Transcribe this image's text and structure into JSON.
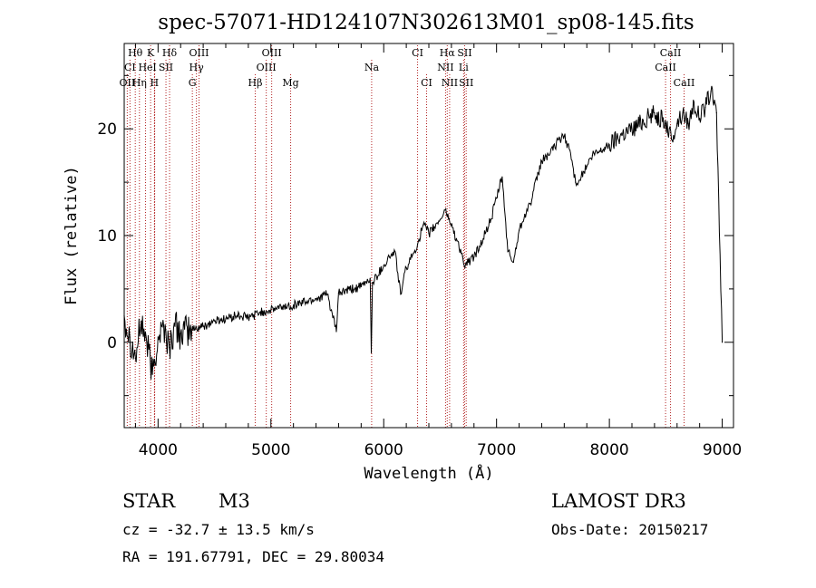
{
  "colors": {
    "background": "#ffffff",
    "ink": "#000000",
    "line_marker": "#b22222"
  },
  "title": "spec-57071-HD124107N302613M01_sp08-145.fits",
  "chart_data": {
    "type": "line",
    "title": "spec-57071-HD124107N302613M01_sp08-145.fits",
    "xlabel": "Wavelength (Å)",
    "ylabel": "Flux (relative)",
    "xlim": [
      3700,
      9100
    ],
    "ylim": [
      -8,
      28
    ],
    "x_ticks": [
      4000,
      5000,
      6000,
      7000,
      8000,
      9000
    ],
    "y_ticks": [
      0,
      10,
      20
    ],
    "series": [
      {
        "name": "spectrum",
        "x": [
          3700,
          3750,
          3800,
          3850,
          3900,
          3950,
          4000,
          4050,
          4100,
          4150,
          4200,
          4300,
          4400,
          4500,
          4600,
          4700,
          4800,
          4900,
          5000,
          5100,
          5200,
          5300,
          5400,
          5500,
          5580,
          5600,
          5700,
          5800,
          5880,
          5890,
          5900,
          6000,
          6050,
          6100,
          6150,
          6200,
          6250,
          6300,
          6350,
          6400,
          6450,
          6500,
          6550,
          6563,
          6580,
          6650,
          6700,
          6720,
          6750,
          6800,
          6850,
          6900,
          6950,
          7000,
          7050,
          7100,
          7150,
          7200,
          7250,
          7300,
          7400,
          7500,
          7550,
          7600,
          7650,
          7700,
          7750,
          7800,
          7850,
          7900,
          8000,
          8100,
          8200,
          8300,
          8400,
          8500,
          8550,
          8600,
          8650,
          8700,
          8750,
          8800,
          8850,
          8900,
          8950,
          9000
        ],
        "y": [
          2.5,
          0.5,
          -1.5,
          2.0,
          0.0,
          -3.0,
          0.5,
          1.5,
          -0.5,
          1.5,
          0.8,
          1.2,
          1.5,
          2.0,
          2.2,
          2.5,
          2.3,
          2.8,
          3.0,
          3.3,
          3.5,
          3.8,
          4.1,
          4.5,
          1.0,
          4.6,
          4.9,
          5.2,
          6.0,
          -1.0,
          5.6,
          7.2,
          8.0,
          8.5,
          4.5,
          7.0,
          8.0,
          9.2,
          11.0,
          10.2,
          10.8,
          11.5,
          12.5,
          11.8,
          11.6,
          9.5,
          8.0,
          7.0,
          7.5,
          8.0,
          9.0,
          10.2,
          11.5,
          13.5,
          15.5,
          8.5,
          7.5,
          10.5,
          12.0,
          13.0,
          17.0,
          18.0,
          19.0,
          19.3,
          18.0,
          15.0,
          15.5,
          16.5,
          17.5,
          17.8,
          18.5,
          19.5,
          20.0,
          20.8,
          21.5,
          20.5,
          19.0,
          20.5,
          21.5,
          20.5,
          22.5,
          21.0,
          22.0,
          23.5,
          21.5,
          0.0
        ]
      }
    ],
    "line_markers": [
      {
        "label": "Hθ",
        "x": 3798,
        "row": 0
      },
      {
        "label": "K",
        "x": 3934,
        "row": 0
      },
      {
        "label": "Hδ",
        "x": 4102,
        "row": 0
      },
      {
        "label": "OIII",
        "x": 4363,
        "row": 0
      },
      {
        "label": "OIII",
        "x": 5007,
        "row": 0
      },
      {
        "label": "CI",
        "x": 6300,
        "row": 0
      },
      {
        "label": "Hα",
        "x": 6563,
        "row": 0
      },
      {
        "label": "SII",
        "x": 6717,
        "row": 0
      },
      {
        "label": "CaII",
        "x": 8542,
        "row": 0
      },
      {
        "label": "CI",
        "x": 3751,
        "row": 1
      },
      {
        "label": "He",
        "x": 3889,
        "row": 1
      },
      {
        "label": "I",
        "x": 3970,
        "row": 1
      },
      {
        "label": "SII",
        "x": 4070,
        "row": 1
      },
      {
        "label": "Hγ",
        "x": 4340,
        "row": 1
      },
      {
        "label": "OIII",
        "x": 4959,
        "row": 1
      },
      {
        "label": "Na",
        "x": 5893,
        "row": 1
      },
      {
        "label": "NII",
        "x": 6548,
        "row": 1
      },
      {
        "label": "Li",
        "x": 6708,
        "row": 1
      },
      {
        "label": "CaII",
        "x": 8498,
        "row": 1
      },
      {
        "label": "OII",
        "x": 3727,
        "row": 2
      },
      {
        "label": "Hη",
        "x": 3835,
        "row": 2
      },
      {
        "label": "H",
        "x": 3968,
        "row": 2
      },
      {
        "label": "G",
        "x": 4304,
        "row": 2
      },
      {
        "label": "Hβ",
        "x": 4861,
        "row": 2
      },
      {
        "label": "Mg",
        "x": 5175,
        "row": 2
      },
      {
        "label": "CI",
        "x": 6380,
        "row": 2
      },
      {
        "label": "NII",
        "x": 6584,
        "row": 2
      },
      {
        "label": "SII",
        "x": 6731,
        "row": 2
      },
      {
        "label": "CaII",
        "x": 8662,
        "row": 2
      }
    ]
  },
  "info": {
    "object_type": "STAR",
    "subclass": "M3",
    "survey": "LAMOST DR3",
    "cz": "cz = -32.7 ± 13.5 km/s",
    "obs_date": "Obs-Date: 20150217",
    "coords": "RA = 191.67791, DEC =  29.80034"
  }
}
